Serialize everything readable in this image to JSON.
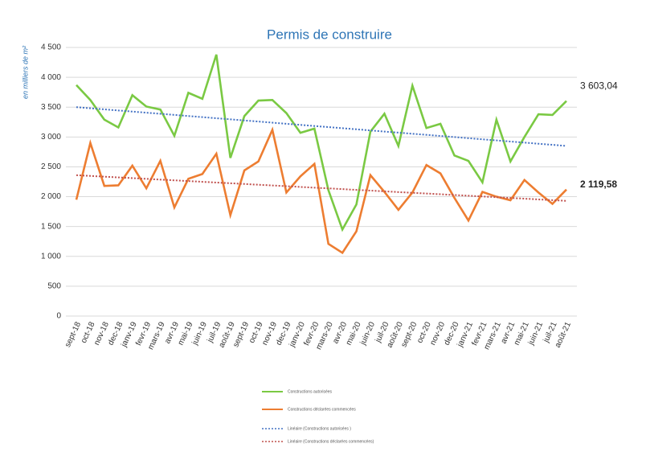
{
  "chart_data": {
    "type": "line",
    "title": "Permis de construire",
    "y_label": "en milliers de m²",
    "categories": [
      "sept-18",
      "oct-18",
      "nov-18",
      "dec-18",
      "janv-19",
      "fevr-19",
      "mars-19",
      "avr-19",
      "mai-19",
      "juin-19",
      "juil-19",
      "août-19",
      "sept-19",
      "oct-19",
      "nov-19",
      "dec-19",
      "janv-20",
      "fevr-20",
      "mars-20",
      "avr-20",
      "mai-20",
      "juin-20",
      "juil-20",
      "août-20",
      "sept-20",
      "oct-20",
      "nov-20",
      "dec-20",
      "janv-21",
      "fevr-21",
      "mars-21",
      "avr-21",
      "mai-21",
      "juin-21",
      "juil-21",
      "août-21"
    ],
    "series": [
      {
        "name": "Constructions autorisées",
        "color": "#7ac943",
        "style": "solid",
        "values": [
          3870,
          3620,
          3290,
          3160,
          3700,
          3510,
          3460,
          3020,
          3740,
          3640,
          4380,
          2650,
          3350,
          3610,
          3620,
          3400,
          3070,
          3140,
          2110,
          1450,
          1870,
          3090,
          3390,
          2850,
          3860,
          3150,
          3220,
          2690,
          2600,
          2240,
          3290,
          2590,
          3000,
          3380,
          3370,
          3603.04
        ],
        "value_labels": [
          null,
          null,
          null,
          null,
          null,
          null,
          null,
          null,
          null,
          null,
          null,
          null,
          null,
          null,
          null,
          null,
          null,
          null,
          null,
          null,
          null,
          null,
          null,
          null,
          null,
          null,
          null,
          null,
          null,
          null,
          null,
          null,
          null,
          null,
          null,
          "3 603,04"
        ]
      },
      {
        "name": "Constructions déclarées commencées",
        "color": "#ed7d31",
        "style": "solid",
        "values": [
          1950,
          2900,
          2180,
          2190,
          2520,
          2140,
          2600,
          1820,
          2300,
          2380,
          2720,
          1690,
          2440,
          2590,
          3120,
          2070,
          2340,
          2550,
          1210,
          1060,
          1420,
          2360,
          2080,
          1780,
          2070,
          2530,
          2390,
          1980,
          1600,
          2080,
          2000,
          1940,
          2280,
          2070,
          1880,
          2119.58
        ],
        "value_labels": [
          null,
          null,
          null,
          null,
          null,
          null,
          null,
          null,
          null,
          null,
          null,
          null,
          null,
          null,
          null,
          null,
          null,
          null,
          null,
          null,
          null,
          null,
          null,
          null,
          null,
          null,
          null,
          null,
          null,
          null,
          null,
          null,
          null,
          null,
          null,
          "2 119,58"
        ]
      },
      {
        "name": "Linéaire (Constructions autorisées )",
        "color": "#4472c4",
        "style": "dotted",
        "values": [
          3500,
          3481,
          3463,
          3444,
          3426,
          3407,
          3389,
          3370,
          3351,
          3333,
          3314,
          3296,
          3277,
          3259,
          3240,
          3221,
          3203,
          3184,
          3166,
          3147,
          3129,
          3110,
          3091,
          3073,
          3054,
          3036,
          3017,
          2999,
          2980,
          2961,
          2943,
          2924,
          2906,
          2887,
          2869,
          2850
        ]
      },
      {
        "name": "Linéaire (Constructions déclarées commencées)",
        "color": "#c0504d",
        "style": "dotted",
        "values": [
          2360,
          2348,
          2335,
          2323,
          2311,
          2299,
          2286,
          2274,
          2262,
          2249,
          2237,
          2225,
          2213,
          2200,
          2188,
          2176,
          2163,
          2151,
          2139,
          2127,
          2114,
          2102,
          2090,
          2077,
          2065,
          2053,
          2041,
          2028,
          2016,
          2004,
          1991,
          1979,
          1967,
          1954,
          1942,
          1930
        ]
      }
    ],
    "ylim": [
      0,
      4500
    ],
    "yticks": [
      0,
      500,
      {
        "value": 1000,
        "label": "1 000"
      },
      {
        "value": 1500,
        "label": "1 500"
      },
      {
        "value": 2000,
        "label": "2 000"
      },
      {
        "value": 2500,
        "label": "2 500"
      },
      {
        "value": 3000,
        "label": "3 000"
      },
      {
        "value": 3500,
        "label": "3 500"
      },
      {
        "value": 4000,
        "label": "4 000"
      },
      {
        "value": 4500,
        "label": "4 500"
      }
    ],
    "grid": true,
    "legend": "bottom"
  }
}
